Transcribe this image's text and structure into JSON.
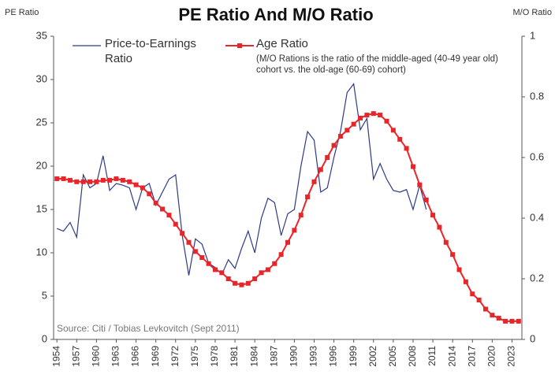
{
  "chart_data": {
    "type": "line",
    "title": "PE Ratio And M/O Ratio",
    "ylabel": "PE Ratio",
    "y2label": "M/O Ratio",
    "note": "(M/O Rations is the ratio of the middle-aged (40-49 year old) cohort vs. the old-age (60-69) cohort)",
    "source": "Source: Citi / Tobias Levkovitch (Sept 2011)",
    "xlim": [
      1953.5,
      2024.5
    ],
    "xticks": [
      1954,
      1957,
      1960,
      1963,
      1966,
      1969,
      1972,
      1975,
      1978,
      1981,
      1984,
      1987,
      1990,
      1993,
      1996,
      1999,
      2002,
      2005,
      2008,
      2011,
      2014,
      2017,
      2020,
      2023
    ],
    "ylim": [
      0,
      35
    ],
    "yticks": [
      0,
      5,
      10,
      15,
      20,
      25,
      30,
      35
    ],
    "y2lim": [
      0,
      1
    ],
    "y2ticks": [
      0,
      0.2,
      0.4,
      0.6,
      0.8,
      1
    ],
    "grid": false,
    "series": [
      {
        "name": "Price-to-Earnings Ratio",
        "color": "#2e3a87",
        "marker": false,
        "x": [
          1954,
          1955,
          1956,
          1957,
          1958,
          1959,
          1960,
          1961,
          1962,
          1963,
          1964,
          1965,
          1966,
          1967,
          1968,
          1969,
          1970,
          1971,
          1972,
          1973,
          1974,
          1975,
          1976,
          1977,
          1978,
          1979,
          1980,
          1981,
          1982,
          1983,
          1984,
          1985,
          1986,
          1987,
          1988,
          1989,
          1990,
          1991,
          1992,
          1993,
          1994,
          1995,
          1996,
          1997,
          1998,
          1999,
          2000,
          2001,
          2002,
          2003,
          2004,
          2005,
          2006,
          2007,
          2008,
          2009,
          2010
        ],
        "values": [
          12.8,
          12.5,
          13.5,
          11.8,
          19,
          17.5,
          18,
          21.2,
          17.2,
          18,
          17.8,
          17.5,
          15,
          17.5,
          18,
          15.5,
          17,
          18.5,
          19,
          12,
          7.4,
          11.6,
          11,
          8.8,
          8.3,
          7.5,
          9.2,
          8.2,
          10.5,
          12.5,
          10,
          14,
          16.3,
          15.8,
          12,
          14.5,
          15,
          20,
          24,
          23,
          17,
          17.5,
          21,
          24,
          28.5,
          29.5,
          24.2,
          25.5,
          18.5,
          20.3,
          18.5,
          17.2,
          17,
          17.3,
          15,
          17.8,
          15
        ]
      },
      {
        "name": "Age Ratio",
        "color": "#e8262a",
        "marker": true,
        "axis": "y2",
        "x": [
          1954,
          1955,
          1956,
          1957,
          1958,
          1959,
          1960,
          1961,
          1962,
          1963,
          1964,
          1965,
          1966,
          1967,
          1968,
          1969,
          1970,
          1971,
          1972,
          1973,
          1974,
          1975,
          1976,
          1977,
          1978,
          1979,
          1980,
          1981,
          1982,
          1983,
          1984,
          1985,
          1986,
          1987,
          1988,
          1989,
          1990,
          1991,
          1992,
          1993,
          1994,
          1995,
          1996,
          1997,
          1998,
          1999,
          2000,
          2001,
          2002,
          2003,
          2004,
          2005,
          2006,
          2007,
          2008,
          2009,
          2010,
          2011,
          2012,
          2013,
          2014,
          2015,
          2016,
          2017,
          2018,
          2019,
          2020,
          2021,
          2022,
          2023,
          2024
        ],
        "values": [
          0.53,
          0.53,
          0.525,
          0.52,
          0.52,
          0.52,
          0.52,
          0.525,
          0.525,
          0.53,
          0.525,
          0.52,
          0.51,
          0.5,
          0.48,
          0.45,
          0.43,
          0.41,
          0.38,
          0.35,
          0.32,
          0.29,
          0.27,
          0.25,
          0.23,
          0.22,
          0.2,
          0.185,
          0.18,
          0.185,
          0.2,
          0.22,
          0.23,
          0.25,
          0.28,
          0.32,
          0.36,
          0.41,
          0.47,
          0.52,
          0.56,
          0.6,
          0.64,
          0.67,
          0.69,
          0.71,
          0.73,
          0.74,
          0.745,
          0.74,
          0.72,
          0.69,
          0.66,
          0.63,
          0.57,
          0.51,
          0.46,
          0.41,
          0.37,
          0.32,
          0.28,
          0.23,
          0.19,
          0.15,
          0.13,
          0.1,
          0.08,
          0.07,
          0.06,
          0.06,
          0.06
        ]
      }
    ]
  }
}
